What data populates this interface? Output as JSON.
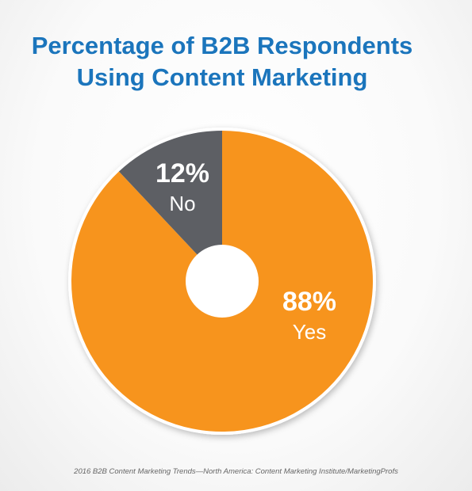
{
  "chart_data": {
    "type": "donut",
    "title": "Percentage of B2B Respondents Using Content Marketing",
    "categories": [
      "Yes",
      "No"
    ],
    "values": [
      88,
      12
    ],
    "value_labels": [
      "88%",
      "12%"
    ],
    "colors": [
      "#f7941d",
      "#5d5f64"
    ],
    "source": "2016 B2B Content Marketing Trends—North America: Content Marketing Institute/MarketingProfs"
  }
}
